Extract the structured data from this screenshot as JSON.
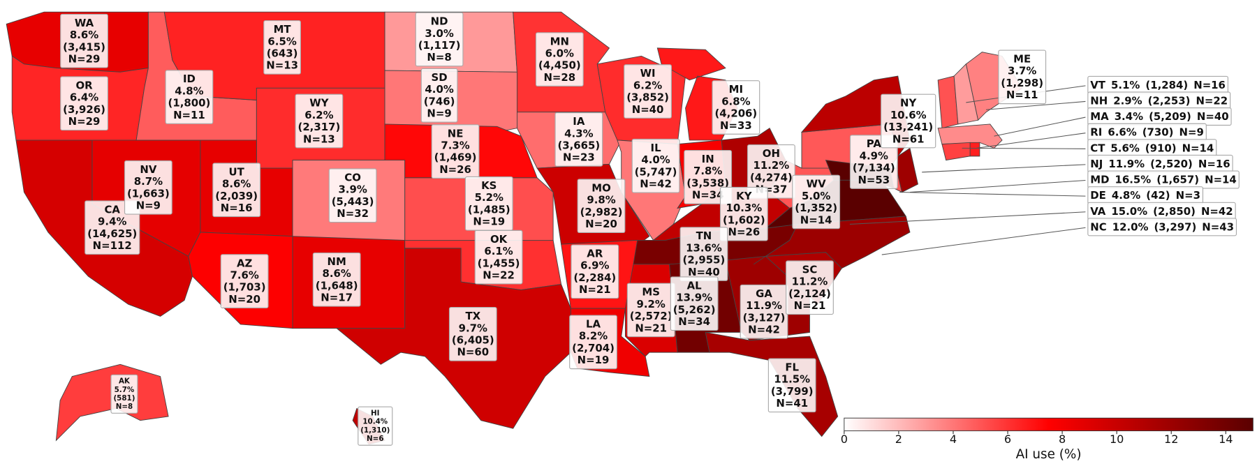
{
  "chart_data": {
    "type": "choropleth",
    "categories": [
      "WA",
      "OR",
      "CA",
      "NV",
      "ID",
      "MT",
      "WY",
      "UT",
      "CO",
      "AZ",
      "NM",
      "ND",
      "SD",
      "NE",
      "KS",
      "OK",
      "TX",
      "MN",
      "IA",
      "MO",
      "AR",
      "LA",
      "WI",
      "IL",
      "MI",
      "IN",
      "OH",
      "KY",
      "TN",
      "MS",
      "AL",
      "GA",
      "SC",
      "FL",
      "WV",
      "PA",
      "NY",
      "ME",
      "VT",
      "NH",
      "MA",
      "RI",
      "CT",
      "NJ",
      "MD",
      "DE",
      "VA",
      "NC",
      "AK",
      "HI"
    ],
    "values": [
      8.6,
      6.4,
      9.4,
      8.7,
      4.8,
      6.5,
      6.2,
      8.6,
      3.9,
      7.6,
      8.6,
      3.0,
      4.0,
      7.3,
      5.2,
      6.1,
      9.7,
      6.0,
      4.3,
      9.8,
      6.9,
      8.2,
      6.2,
      4.0,
      6.8,
      7.8,
      11.2,
      10.3,
      13.6,
      9.2,
      13.9,
      11.9,
      11.2,
      11.5,
      5.0,
      4.9,
      10.6,
      3.7,
      5.1,
      2.9,
      3.4,
      6.6,
      5.6,
      11.9,
      16.5,
      4.8,
      15.0,
      12.0,
      5.7,
      10.4
    ],
    "value_labels": [
      "8.6%",
      "6.4%",
      "9.4%",
      "8.7%",
      "4.8%",
      "6.5%",
      "6.2%",
      "8.6%",
      "3.9%",
      "7.6%",
      "8.6%",
      "3.0%",
      "4.0%",
      "7.3%",
      "5.2%",
      "6.1%",
      "9.7%",
      "6.0%",
      "4.3%",
      "9.8%",
      "6.9%",
      "8.2%",
      "6.2%",
      "4.0%",
      "6.8%",
      "7.8%",
      "11.2%",
      "10.3%",
      "13.6%",
      "9.2%",
      "13.9%",
      "11.9%",
      "11.2%",
      "11.5%",
      "5.0%",
      "4.9%",
      "10.6%",
      "3.7%",
      "5.1%",
      "2.9%",
      "3.4%",
      "6.6%",
      "5.6%",
      "11.9%",
      "16.5%",
      "4.8%",
      "15.0%",
      "12.0%",
      "5.7%",
      "10.4%"
    ],
    "count_labels": [
      "(3,415)",
      "(3,926)",
      "(14,625)",
      "(1,663)",
      "(1,800)",
      "(643)",
      "(2,317)",
      "(2,039)",
      "(5,443)",
      "(1,703)",
      "(1,648)",
      "(1,117)",
      "(746)",
      "(1,469)",
      "(1,485)",
      "(1,455)",
      "(6,405)",
      "(4,450)",
      "(3,665)",
      "(2,982)",
      "(2,284)",
      "(2,704)",
      "(3,852)",
      "(5,747)",
      "(4,206)",
      "(3,538)",
      "(4,274)",
      "(1,602)",
      "(2,955)",
      "(2,572)",
      "(5,262)",
      "(3,127)",
      "(2,124)",
      "(3,799)",
      "(1,352)",
      "(7,134)",
      "(13,241)",
      "(1,298)",
      "(1,284)",
      "(2,253)",
      "(5,209)",
      "(730)",
      "(910)",
      "(2,520)",
      "(1,657)",
      "(42)",
      "(2,850)",
      "(3,297)",
      "(581)",
      "(1,310)"
    ],
    "n_labels": [
      "N=29",
      "N=29",
      "N=112",
      "N=9",
      "N=11",
      "N=13",
      "N=13",
      "N=16",
      "N=32",
      "N=20",
      "N=17",
      "N=8",
      "N=9",
      "N=26",
      "N=19",
      "N=22",
      "N=60",
      "N=28",
      "N=23",
      "N=20",
      "N=21",
      "N=19",
      "N=40",
      "N=42",
      "N=33",
      "N=34",
      "N=37",
      "N=26",
      "N=40",
      "N=21",
      "N=34",
      "N=42",
      "N=21",
      "N=41",
      "N=14",
      "N=53",
      "N=61",
      "N=11",
      "N=16",
      "N=22",
      "N=40",
      "N=9",
      "N=14",
      "N=16",
      "N=14",
      "N=3",
      "N=42",
      "N=43",
      "N=8",
      "N=6"
    ],
    "colormap": [
      "#ffffff",
      "#ff0000",
      "#5a0000"
    ],
    "colorbar": {
      "label": "AI use (%)",
      "lim": [
        0,
        15
      ],
      "ticks": [
        0,
        2,
        4,
        6,
        8,
        10,
        12,
        14
      ]
    }
  }
}
